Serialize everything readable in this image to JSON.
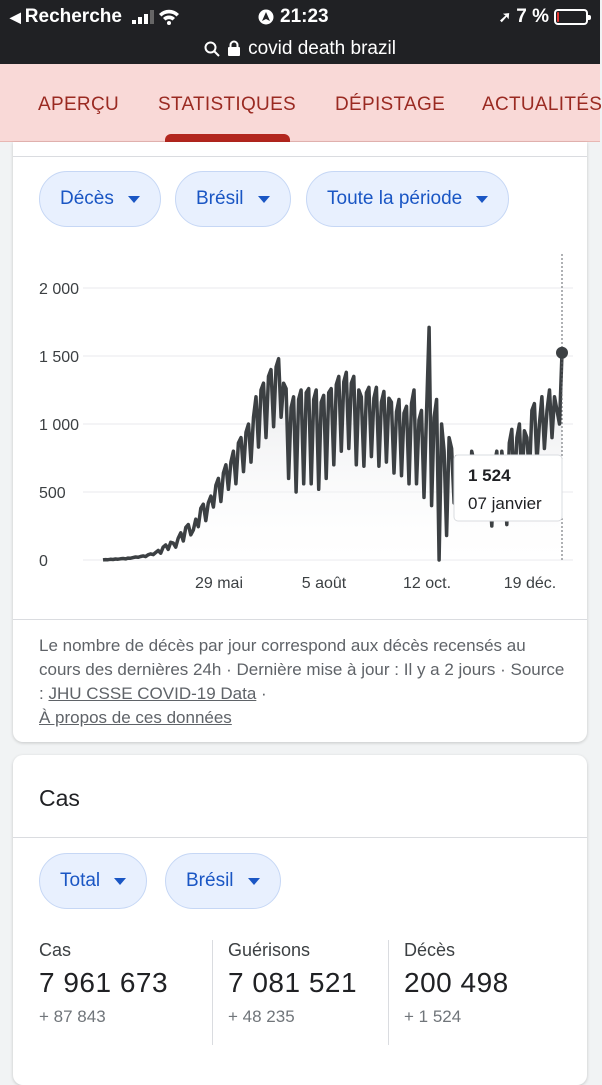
{
  "status_bar": {
    "back_label": "Recherche",
    "time": "21:23",
    "battery": "7 %",
    "battery_level": 0.07
  },
  "url_bar": {
    "query": "covid death brazil"
  },
  "tabs": [
    {
      "label": "APERÇU"
    },
    {
      "label": "STATISTIQUES"
    },
    {
      "label": "DÉPISTAGE"
    },
    {
      "label": "ACTUALITÉS"
    }
  ],
  "deaths_card": {
    "filters": {
      "metric": "Décès",
      "region": "Brésil",
      "period": "Toute la période"
    },
    "tooltip": {
      "value": "1 524",
      "date": "07 janvier"
    },
    "note": {
      "text": "Le nombre de décès par jour correspond aux décès recensés au cours des dernières 24h · Dernière mise à jour : Il y a 2 jours · Source :",
      "source_link": "JHU CSSE COVID-19 Data",
      "about_link": "À propos de ces données"
    }
  },
  "cases_card": {
    "title": "Cas",
    "filters": {
      "mode": "Total",
      "region": "Brésil"
    },
    "stats": [
      {
        "label": "Cas",
        "value": "7 961 673",
        "delta": "+ 87 843"
      },
      {
        "label": "Guérisons",
        "value": "7 081 521",
        "delta": "+ 48 235"
      },
      {
        "label": "Décès",
        "value": "200 498",
        "delta": "+ 1 524"
      }
    ]
  },
  "chart_data": {
    "type": "line",
    "ylim": [
      0,
      2000
    ],
    "yticks": [
      {
        "value": 0,
        "label": "0"
      },
      {
        "value": 500,
        "label": "500"
      },
      {
        "value": 1000,
        "label": "1 000"
      },
      {
        "value": 1500,
        "label": "1 500"
      },
      {
        "value": 2000,
        "label": "2 000"
      }
    ],
    "xticks": [
      "29 mai",
      "5 août",
      "12 oct.",
      "19 déc."
    ],
    "series": [
      {
        "x_start": "2020-03-17",
        "values": [
          1,
          3,
          2,
          5,
          4,
          7,
          6,
          9,
          11,
          8,
          14,
          13,
          18,
          22,
          20,
          26,
          30,
          25,
          38,
          45,
          40,
          55,
          70,
          50,
          95,
          110,
          78,
          130,
          125,
          95,
          160,
          200,
          140,
          240,
          260,
          185,
          220,
          300,
          245,
          380,
          410,
          290,
          420,
          470,
          390,
          550,
          600,
          430,
          640,
          700,
          520,
          720,
          800,
          560,
          860,
          900,
          650,
          940,
          1000,
          720,
          1050,
          1200,
          830,
          1250,
          1300,
          900,
          1350,
          1400,
          980,
          1420,
          1480,
          1050,
          1300,
          1260,
          600,
          1120,
          1200,
          500,
          1180,
          1250,
          560,
          1230,
          1260,
          560,
          1180,
          1250,
          520,
          1160,
          1210,
          600,
          1230,
          1260,
          700,
          1290,
          1350,
          800,
          1310,
          1380,
          820,
          1300,
          1350,
          700,
          1250,
          1200,
          690,
          1230,
          1270,
          760,
          1190,
          1270,
          690,
          1160,
          1240,
          720,
          1190,
          1160,
          640,
          1090,
          1180,
          620,
          1080,
          1130,
          560,
          1150,
          1250,
          560,
          1030,
          1100,
          460,
          1100,
          1710,
          400,
          1050,
          1180,
          0,
          1000,
          800,
          180,
          900,
          820,
          420,
          760,
          680,
          300,
          680,
          600,
          350,
          800,
          720,
          440,
          720,
          640,
          350,
          600,
          560,
          250,
          700,
          800,
          400,
          800,
          640,
          260,
          860,
          960,
          500,
          900,
          1000,
          560,
          950,
          900,
          620,
          1100,
          1150,
          720,
          1000,
          1200,
          820,
          1100,
          1250,
          900,
          1200,
          1100,
          1000,
          1524
        ]
      }
    ]
  }
}
